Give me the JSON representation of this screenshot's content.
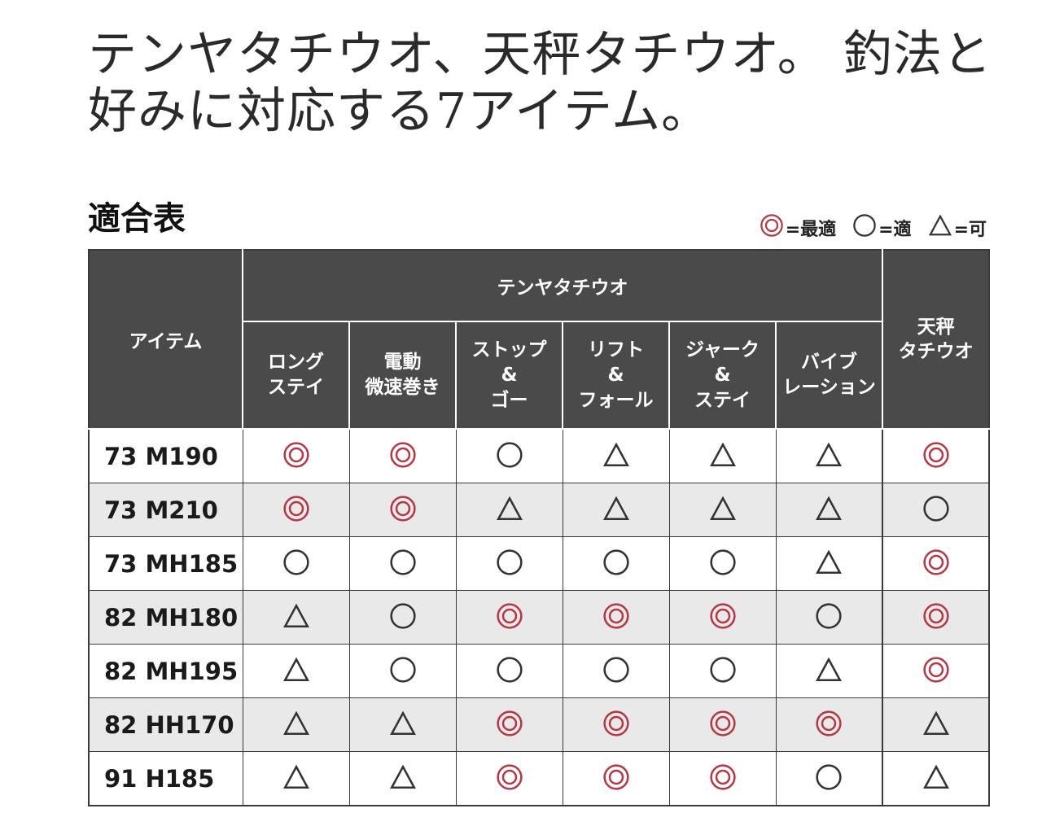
{
  "headline": {
    "line1": "テンヤタチウオ、天秤タチウオ。 釣法と",
    "line2": "好みに対応する7アイテム。"
  },
  "section_title": "適合表",
  "legend": [
    {
      "symbol": "double-circle",
      "label": "=最適"
    },
    {
      "symbol": "circle",
      "label": "=適"
    },
    {
      "symbol": "triangle",
      "label": "=可"
    }
  ],
  "colors": {
    "double_circle": "#b23a48",
    "mark_dark": "#333333",
    "header_bg": "#4a4a4a",
    "stripe_bg": "#e9e9e9"
  },
  "table": {
    "item_header": "アイテム",
    "group_header": "テンヤタチウオ",
    "tenbin_header": [
      "天秤",
      "タチウオ"
    ],
    "sub_headers": [
      [
        "ロング",
        "ステイ"
      ],
      [
        "電動",
        "微速巻き"
      ],
      [
        "ストップ",
        "&",
        "ゴー"
      ],
      [
        "リフト",
        "&",
        "フォール"
      ],
      [
        "ジャーク",
        "&",
        "ステイ"
      ],
      [
        "バイブ",
        "レーション"
      ]
    ],
    "rows": [
      {
        "item": "73 M190",
        "marks": [
          "double-circle",
          "double-circle",
          "circle",
          "triangle",
          "triangle",
          "triangle",
          "double-circle"
        ]
      },
      {
        "item": "73 M210",
        "marks": [
          "double-circle",
          "double-circle",
          "triangle",
          "triangle",
          "triangle",
          "triangle",
          "circle"
        ]
      },
      {
        "item": "73 MH185",
        "marks": [
          "circle",
          "circle",
          "circle",
          "circle",
          "circle",
          "triangle",
          "double-circle"
        ]
      },
      {
        "item": "82 MH180",
        "marks": [
          "triangle",
          "circle",
          "double-circle",
          "double-circle",
          "double-circle",
          "circle",
          "double-circle"
        ]
      },
      {
        "item": "82 MH195",
        "marks": [
          "triangle",
          "circle",
          "circle",
          "circle",
          "circle",
          "triangle",
          "double-circle"
        ]
      },
      {
        "item": "82 HH170",
        "marks": [
          "triangle",
          "triangle",
          "double-circle",
          "double-circle",
          "double-circle",
          "double-circle",
          "triangle"
        ]
      },
      {
        "item": "91 H185",
        "marks": [
          "triangle",
          "triangle",
          "double-circle",
          "double-circle",
          "double-circle",
          "circle",
          "triangle"
        ]
      }
    ]
  }
}
